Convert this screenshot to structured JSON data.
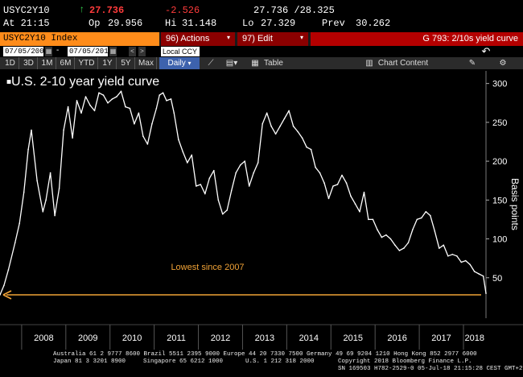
{
  "quote": {
    "ticker": "USYC2Y10",
    "time": "At 21:15",
    "last_arrow": "↑",
    "last": "27.736",
    "open_label": "Op",
    "open": "29.956",
    "change": "-2.526",
    "high_label": "Hi",
    "high": "31.148",
    "bid_ask": "27.736 /28.325",
    "low_label": "Lo",
    "low": "27.329",
    "prev_label": "Prev",
    "prev": "30.262"
  },
  "command_bar": {
    "security": "USYC2Y10 Index",
    "actions": "96) Actions",
    "edit": "97) Edit",
    "function_title": "G 793: 2/10s yield curve"
  },
  "date_row": {
    "start": "07/05/2007",
    "end": "07/05/2018",
    "currency": "Local CCY",
    "back": "↶"
  },
  "toolbar": {
    "periods": [
      "1D",
      "3D",
      "1M",
      "6M",
      "YTD",
      "1Y",
      "5Y",
      "Max"
    ],
    "frequency": "Daily",
    "table": "Table",
    "chart_content": "Chart Content"
  },
  "chart_data": {
    "type": "line",
    "title": "U.S. 2-10 year yield curve",
    "ylabel": "Basis points",
    "ylim": [
      0,
      310
    ],
    "yticks": [
      50,
      100,
      150,
      200,
      250,
      300
    ],
    "x_tick_labels": [
      "2008",
      "2009",
      "2010",
      "2011",
      "2012",
      "2013",
      "2014",
      "2015",
      "2016",
      "2017",
      "2018"
    ],
    "xlim": [
      2007.51,
      2018.51
    ],
    "annotation": "Lowest since 2007",
    "annotation_line_value": 28,
    "series": [
      {
        "x": [
          2007.51,
          2007.6,
          2007.7,
          2007.85,
          2007.95,
          2008.05,
          2008.15,
          2008.22,
          2008.35,
          2008.48,
          2008.55,
          2008.65,
          2008.75,
          2008.85,
          2008.95,
          2009.05,
          2009.15,
          2009.25,
          2009.35,
          2009.45,
          2009.55,
          2009.65,
          2009.75,
          2009.85,
          2009.95,
          2010.05,
          2010.15,
          2010.25,
          2010.35,
          2010.45,
          2010.55,
          2010.65,
          2010.75,
          2010.85,
          2010.95,
          2011.05,
          2011.12,
          2011.2,
          2011.28,
          2011.38,
          2011.45,
          2011.55,
          2011.65,
          2011.75,
          2011.85,
          2011.95,
          2012.05,
          2012.15,
          2012.25,
          2012.35,
          2012.45,
          2012.55,
          2012.65,
          2012.75,
          2012.85,
          2012.95,
          2013.05,
          2013.15,
          2013.25,
          2013.35,
          2013.45,
          2013.55,
          2013.65,
          2013.75,
          2013.85,
          2013.95,
          2014.05,
          2014.15,
          2014.25,
          2014.35,
          2014.45,
          2014.55,
          2014.65,
          2014.75,
          2014.85,
          2014.95,
          2015.05,
          2015.15,
          2015.25,
          2015.35,
          2015.45,
          2015.55,
          2015.65,
          2015.75,
          2015.85,
          2015.95,
          2016.05,
          2016.15,
          2016.25,
          2016.35,
          2016.45,
          2016.55,
          2016.65,
          2016.75,
          2016.85,
          2016.95,
          2017.05,
          2017.15,
          2017.25,
          2017.35,
          2017.45,
          2017.55,
          2017.65,
          2017.75,
          2017.85,
          2017.95,
          2018.05,
          2018.15,
          2018.25,
          2018.35,
          2018.45,
          2018.51
        ],
        "values": [
          28,
          40,
          60,
          95,
          120,
          160,
          215,
          240,
          175,
          135,
          150,
          185,
          130,
          165,
          240,
          270,
          230,
          278,
          262,
          283,
          272,
          265,
          288,
          285,
          275,
          280,
          283,
          290,
          270,
          268,
          248,
          262,
          232,
          222,
          248,
          268,
          285,
          288,
          278,
          280,
          262,
          228,
          212,
          198,
          208,
          168,
          170,
          158,
          178,
          188,
          150,
          132,
          137,
          162,
          185,
          195,
          200,
          168,
          185,
          198,
          248,
          262,
          245,
          235,
          245,
          255,
          265,
          245,
          238,
          230,
          218,
          215,
          192,
          185,
          172,
          152,
          168,
          170,
          182,
          172,
          155,
          145,
          135,
          160,
          125,
          125,
          112,
          102,
          105,
          100,
          92,
          85,
          88,
          95,
          112,
          125,
          127,
          135,
          130,
          110,
          88,
          92,
          78,
          80,
          78,
          70,
          72,
          67,
          58,
          55,
          52,
          30
        ]
      }
    ]
  },
  "footer": {
    "line1": "Australia 61 2 9777 8600 Brazil 5511 2395 9000 Europe 44 20 7330 7500 Germany 49 69 9204 1210 Hong Kong 852 2977 6000",
    "line2a": "Japan 81 3 3201 8900",
    "line2b": "Singapore 65 6212 1000",
    "line2c": "U.S. 1 212 318 2000",
    "line2d": "Copyright 2018 Bloomberg Finance L.P.",
    "line3": "SN 169503 H782-2529-0 05-Jul-18 21:15:28 CEST GMT+2:00"
  }
}
